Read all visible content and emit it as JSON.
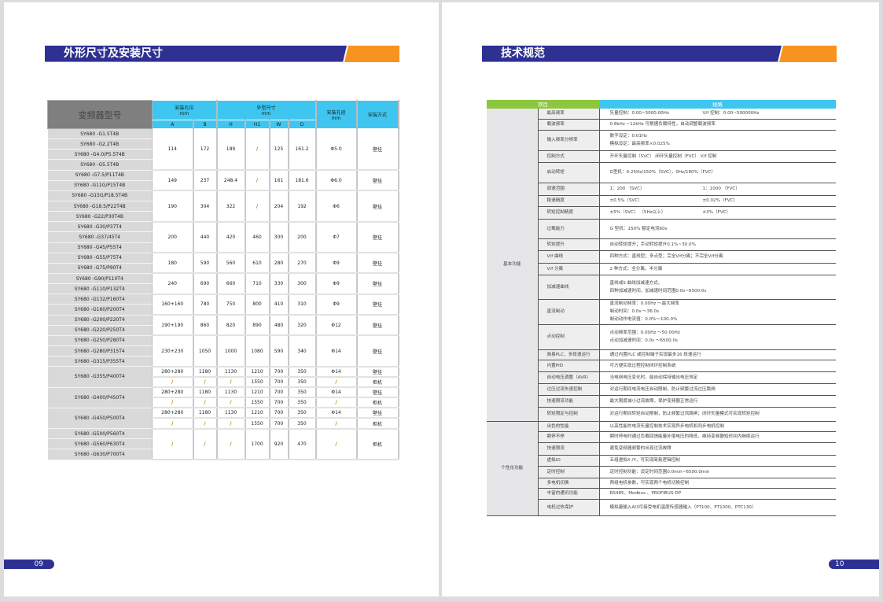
{
  "left_page": {
    "title": "外形尺寸及安装尺寸",
    "page_number": "09",
    "table": {
      "header": {
        "model": "变频器型号",
        "hole_pos": "安装孔位",
        "hole_pos_unit": "mm",
        "outline": "外型尺寸",
        "outline_unit": "mm",
        "hole_dia": "安装孔径",
        "hole_dia_unit": "mm",
        "mount": "安装方式",
        "cols": [
          "A",
          "B",
          "H",
          "H1",
          "W",
          "D"
        ]
      },
      "groups": [
        {
          "models": [
            "SY680 -G1.5T4B",
            "SY680 -G2.2T4B",
            "SY680 -G4.0/P5.5T4B",
            "SY680 -G5.5T4B"
          ],
          "rows": [
            [
              "114",
              "172",
              "189",
              "/",
              "125",
              "161.2",
              "Φ5.0",
              "壁挂"
            ]
          ]
        },
        {
          "models": [
            "SY680 -G7.5/P11T4B",
            "SY680 -G11G/P15T4B"
          ],
          "rows": [
            [
              "149",
              "237",
              "248.4",
              "/",
              "161",
              "181.6",
              "Φ6.0",
              "壁挂"
            ]
          ]
        },
        {
          "models": [
            "SY680 -G15G/P18.5T4B",
            "SY680 -G18.5/P22T4B",
            "SY680 -G22/P30T4B"
          ],
          "rows": [
            [
              "190",
              "304",
              "322",
              "/",
              "204",
              "192",
              "Φ6",
              "壁挂"
            ]
          ]
        },
        {
          "models": [
            "SY680 -G30/P37T4",
            "SY680 -G37/45T4",
            "SY680 -G45/P55T4"
          ],
          "rows": [
            [
              "200",
              "440",
              "420",
              "460",
              "300",
              "200",
              "Φ7",
              "壁挂"
            ]
          ]
        },
        {
          "models": [
            "SY680 -G55/P75T4",
            "SY680 -G75/P90T4"
          ],
          "rows": [
            [
              "180",
              "590",
              "560",
              "610",
              "280",
              "270",
              "Φ9",
              "壁挂"
            ]
          ]
        },
        {
          "models": [
            "SY680 -G90/P110T4",
            "SY680 -G110/P132T4"
          ],
          "rows": [
            [
              "240",
              "690",
              "660",
              "710",
              "330",
              "300",
              "Φ9",
              "壁挂"
            ]
          ]
        },
        {
          "models": [
            "SY680 -G132/P160T4",
            "SY680 -G160/P200T4"
          ],
          "rows": [
            [
              "160+160",
              "780",
              "750",
              "800",
              "410",
              "310",
              "Φ9",
              "壁挂"
            ]
          ]
        },
        {
          "models": [
            "SY680 -G200/P220T4",
            "SY680 -G220/P250T4"
          ],
          "rows": [
            [
              "190+190",
              "860",
              "820",
              "890",
              "480",
              "320",
              "Φ12",
              "壁挂"
            ]
          ]
        },
        {
          "models": [
            "SY680 -G250/P280T4",
            "SY680 -G280/P315T4",
            "SY680 -G315/P355T4"
          ],
          "rows": [
            [
              "230+230",
              "1050",
              "1000",
              "1080",
              "590",
              "340",
              "Φ14",
              "壁挂"
            ]
          ]
        },
        {
          "models": [
            "SY680 -G355/P400T4"
          ],
          "rows": [
            [
              "280+280",
              "1180",
              "1130",
              "1210",
              "700",
              "350",
              "Φ14",
              "壁挂"
            ],
            [
              "/",
              "/",
              "/",
              "1550",
              "700",
              "350",
              "/",
              "柜机"
            ]
          ]
        },
        {
          "models": [
            "SY680 -G400/P450T4"
          ],
          "rows": [
            [
              "280+280",
              "1180",
              "1130",
              "1210",
              "700",
              "350",
              "Φ14",
              "壁挂"
            ],
            [
              "/",
              "/",
              "/",
              "1550",
              "700",
              "350",
              "/",
              "柜机"
            ]
          ]
        },
        {
          "models": [
            "SY680 -G450/P500T4"
          ],
          "rows": [
            [
              "280+280",
              "1180",
              "1130",
              "1210",
              "700",
              "350",
              "Φ14",
              "壁挂"
            ],
            [
              "/",
              "/",
              "/",
              "1550",
              "700",
              "350",
              "/",
              "柜机"
            ]
          ]
        },
        {
          "models": [
            "SY680 -G500/P560T4",
            "SY680 -G560/P630T4",
            "SY680 -G630/P700T4"
          ],
          "rows": [
            [
              "/",
              "/",
              "/",
              "1700",
              "920",
              "470",
              "/",
              "柜机"
            ]
          ]
        }
      ]
    }
  },
  "right_page": {
    "title": "技术规范",
    "page_number": "10",
    "colors": {
      "header_item": "#8dc63f",
      "header_spec": "#3ec6f0",
      "banner": "#2e3192",
      "accent": "#f7931e"
    },
    "table": {
      "header": {
        "item": "项目",
        "spec": "规格"
      },
      "categories": [
        {
          "name": "基本功能",
          "rows": [
            {
              "item": "最高频率",
              "lines": [
                [
                  "矢量控制：0.00~5000.00Hz",
                  "V/f 控制：0.00~500000Hz"
                ]
              ]
            },
            {
              "item": "载波频率",
              "lines": [
                "0.8kHz ~12kHz 可根据负载特性，自动调整载波频率"
              ]
            },
            {
              "item": "输入频率分辨率",
              "lines": [
                "数字设定：0.01Hz",
                "模拟设定：最高频率×0.025%"
              ]
            },
            {
              "item": "控制方式",
              "lines": [
                "开环矢量控制（SVC） 闭环矢量控制（FVC） V/f 控制"
              ]
            },
            {
              "item": "启动转矩",
              "lines": [
                "G型机：0.25Hz/150%（SVC），0Hz/180%（FVC）"
              ]
            },
            {
              "item": "调速范围",
              "lines": [
                [
                  "1：200 （SVC）",
                  "1：1000 （FVC）"
                ]
              ]
            },
            {
              "item": "稳速精度",
              "lines": [
                [
                  "±0.5%（SVC）",
                  "±0.02%（FVC）"
                ]
              ]
            },
            {
              "item": "转矩控制精度",
              "lines": [
                [
                  "±5%（SVC） （5Hz以上）",
                  "±3%（FVC）"
                ]
              ]
            },
            {
              "item": "过载能力",
              "lines": [
                "G 型机：150% 额定电流60s"
              ]
            },
            {
              "item": "转矩提升",
              "lines": [
                "自动转矩提升；手动转矩提升0.1%~30.0%"
              ]
            },
            {
              "item": "V/f 曲线",
              "lines": [
                "四种方式：直线型；多点型；完全V/f分离；不完全V/f分离"
              ]
            },
            {
              "item": "V/f 分离",
              "lines": [
                "2 种方式：全分离、半分离"
              ]
            },
            {
              "item": "加减速曲线",
              "lines": [
                "直线或S 曲线加减速方式。",
                "四种加减速时间，加减速时间范围0.0s~6500.0s"
              ]
            },
            {
              "item": "直流制动",
              "lines": [
                "直流制动频率：0.00Hz ～最大频率",
                "制动时间：0.0s ～36.0s",
                "制动动作电流值：0.0%～100.0%"
              ]
            },
            {
              "item": "点动控制",
              "lines": [
                "点动频率范围：0.00Hz ～50.00Hz",
                "点动加减速时间：0.0s ～6500.0s"
              ]
            },
            {
              "item": "简易PLC、多段速运行",
              "lines": [
                "通过内置PLC 或控制端子实现最多16 段速运行"
              ]
            },
            {
              "item": "内置PID",
              "lines": [
                "可方便实现过程控制闭环控制系统"
              ]
            },
            {
              "item": "自动电压调整（AVR）",
              "lines": [
                "当电网电压变化时，能自动保持输出电压恒定"
              ]
            },
            {
              "item": "过压过流失速控制",
              "lines": [
                "对运行期间电流电压自动限制，防止频繁过流过压跳闸"
              ]
            },
            {
              "item": "快速限流功能",
              "lines": [
                "最大限度减小过流故障，保护变频器正常运行"
              ]
            },
            {
              "item": "转矩限定与控制",
              "lines": [
                "对运行期间转矩自动限制，防止频繁过流跳闸；闭环矢量模式可实现转矩控制"
              ]
            }
          ]
        },
        {
          "name": "个性化功能",
          "rows": [
            {
              "item": "出色的性能",
              "lines": [
                "以高性能的电流矢量控制技术实现异步电机和同步电机控制"
              ]
            },
            {
              "item": "瞬停不停",
              "lines": [
                "瞬时停电时通过负载回馈能量补偿电压的降低，维持变频器短时间内继续运行"
              ]
            },
            {
              "item": "快速限流",
              "lines": [
                "避免变频器频繁的出现过流故障"
              ]
            },
            {
              "item": "虚拟IO",
              "lines": [
                "五组虚拟X /Y，可实现简易逻辑控制"
              ]
            },
            {
              "item": "定时控制",
              "lines": [
                "定时控制功能：设定时间范围0.0min~6500.0min"
              ]
            },
            {
              "item": "多电机切换",
              "lines": [
                "两组电机参数，可实现两个电机切换控制"
              ]
            },
            {
              "item": "丰富的通讯功能",
              "lines": [
                "RS485、Modbus 、PROFIBUS-DP"
              ]
            },
            {
              "item": "电机过热保护",
              "lines": [
                "模拟量输入AI3可接受电机温度传感器输入（PT100、PT1000、PTC130）"
              ]
            }
          ]
        }
      ]
    }
  }
}
